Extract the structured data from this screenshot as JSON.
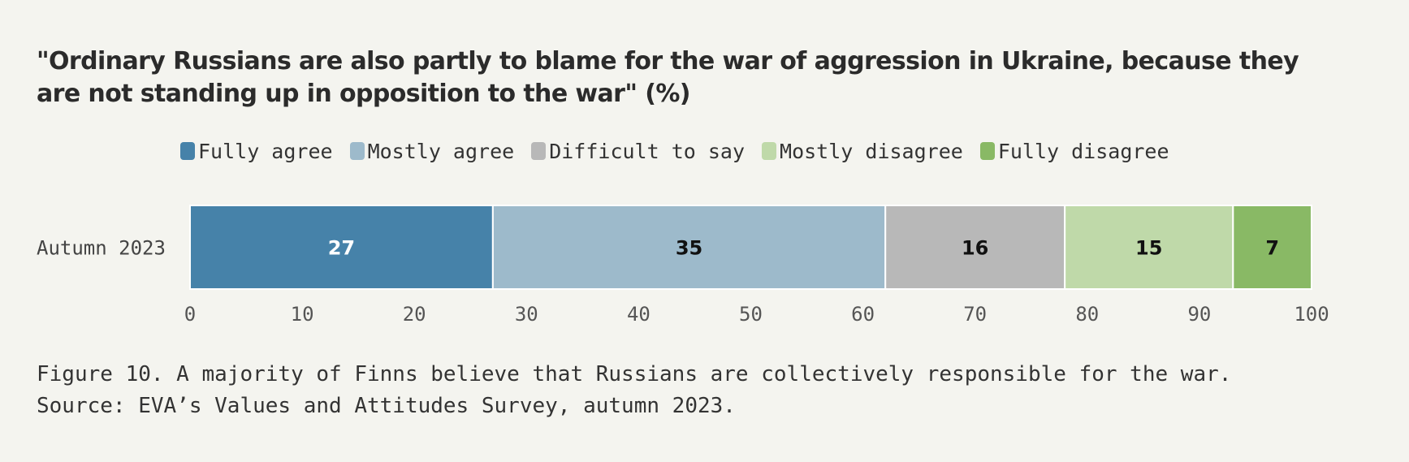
{
  "chart_data": {
    "type": "bar",
    "orientation": "horizontal",
    "stacked": true,
    "title": "\"Ordinary Russians are also partly to blame for the war of aggression in Ukraine, because they are not standing up in opposition to the war\" (%)",
    "categories": [
      "Autumn 2023"
    ],
    "series": [
      {
        "name": "Fully agree",
        "values": [
          27
        ],
        "color": "#4682a9",
        "label_color": "#ffffff"
      },
      {
        "name": "Mostly agree",
        "values": [
          35
        ],
        "color": "#9dbacb",
        "label_color": "#111111"
      },
      {
        "name": "Difficult to say",
        "values": [
          16
        ],
        "color": "#b8b8b8",
        "label_color": "#111111"
      },
      {
        "name": "Mostly disagree",
        "values": [
          15
        ],
        "color": "#bfd9a9",
        "label_color": "#111111"
      },
      {
        "name": "Fully disagree",
        "values": [
          7
        ],
        "color": "#89b965",
        "label_color": "#111111"
      }
    ],
    "xlim": [
      0,
      100
    ],
    "xticks": [
      0,
      10,
      20,
      30,
      40,
      50,
      60,
      70,
      80,
      90,
      100
    ],
    "legend_position": "top",
    "grid": false
  },
  "caption": {
    "line1": "Figure 10. A majority of Finns believe that Russians are collectively responsible for the war.",
    "line2": "Source: EVA’s Values and Attitudes Survey, autumn 2023."
  }
}
